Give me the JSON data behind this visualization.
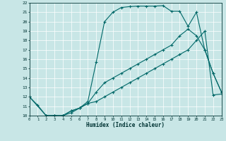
{
  "xlabel": "Humidex (Indice chaleur)",
  "xlim": [
    0,
    23
  ],
  "ylim": [
    10,
    22
  ],
  "xticks": [
    0,
    1,
    2,
    3,
    4,
    5,
    6,
    7,
    8,
    9,
    10,
    11,
    12,
    13,
    14,
    15,
    16,
    17,
    18,
    19,
    20,
    21,
    22,
    23
  ],
  "yticks": [
    10,
    11,
    12,
    13,
    14,
    15,
    16,
    17,
    18,
    19,
    20,
    21,
    22
  ],
  "bg_color": "#c8e6e6",
  "line_color": "#006868",
  "curve1_x": [
    0,
    1,
    2,
    3,
    4,
    5,
    6,
    7,
    8,
    9,
    10,
    11,
    12,
    13,
    14,
    15,
    16,
    17,
    18,
    19,
    20,
    21,
    22,
    23
  ],
  "curve1_y": [
    12.0,
    11.1,
    10.0,
    10.0,
    10.0,
    10.3,
    10.8,
    11.5,
    15.7,
    20.0,
    21.0,
    21.5,
    21.6,
    21.65,
    21.65,
    21.65,
    21.7,
    21.1,
    21.1,
    19.5,
    21.0,
    17.0,
    14.5,
    12.5
  ],
  "curve2_x": [
    0,
    2,
    3,
    4,
    5,
    6,
    7,
    8,
    9,
    10,
    11,
    12,
    13,
    14,
    15,
    16,
    17,
    18,
    19,
    20,
    21,
    22,
    23
  ],
  "curve2_y": [
    12.0,
    10.0,
    10.0,
    10.0,
    10.5,
    10.8,
    11.3,
    12.5,
    13.5,
    14.0,
    14.5,
    15.0,
    15.5,
    16.0,
    16.5,
    17.0,
    17.5,
    18.5,
    19.2,
    18.5,
    17.0,
    14.5,
    12.5
  ],
  "curve3_x": [
    2,
    3,
    4,
    5,
    6,
    7,
    8,
    9,
    10,
    11,
    12,
    13,
    14,
    15,
    16,
    17,
    18,
    19,
    20,
    21,
    22,
    23
  ],
  "curve3_y": [
    10.0,
    10.0,
    10.0,
    10.5,
    10.8,
    11.3,
    11.5,
    12.0,
    12.5,
    13.0,
    13.5,
    14.0,
    14.5,
    15.0,
    15.5,
    16.0,
    16.5,
    17.0,
    18.0,
    19.0,
    12.2,
    12.3
  ]
}
